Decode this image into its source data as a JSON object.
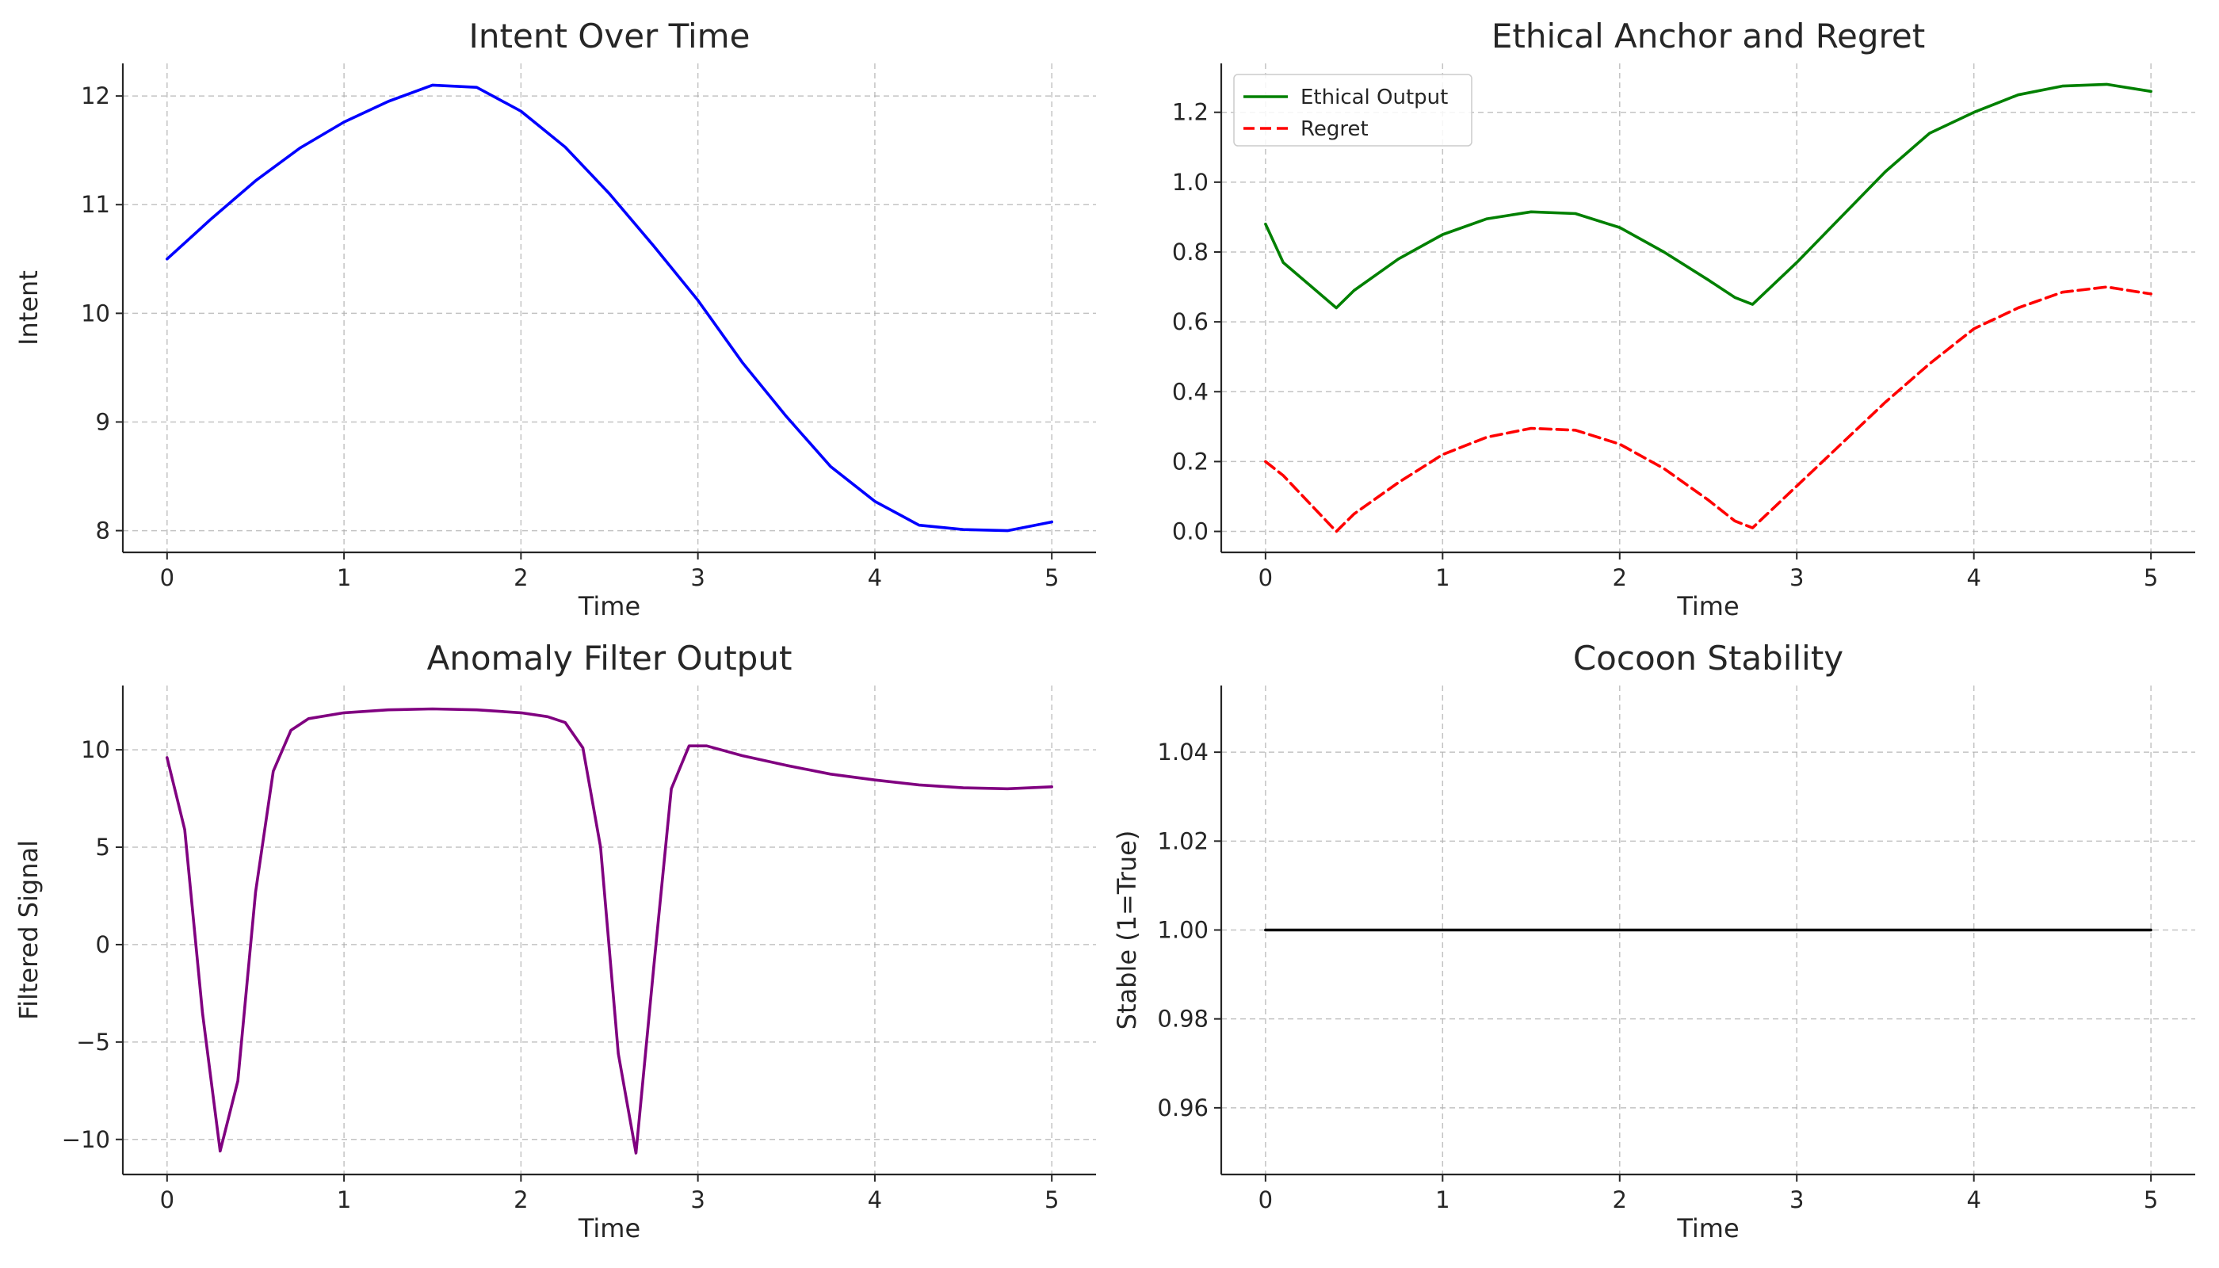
{
  "chart_data": [
    {
      "type": "line",
      "title": "Intent Over Time",
      "xlabel": "Time",
      "ylabel": "Intent",
      "xlim": [
        -0.25,
        5.25
      ],
      "ylim": [
        7.8,
        12.3
      ],
      "xticks": [
        0,
        1,
        2,
        3,
        4,
        5
      ],
      "yticks": [
        8,
        9,
        10,
        11,
        12
      ],
      "ytick_labels": [
        "8",
        "9",
        "10",
        "11",
        "12"
      ],
      "grid": true,
      "legend": null,
      "x": [
        0,
        0.25,
        0.5,
        0.75,
        1,
        1.25,
        1.5,
        1.75,
        2,
        2.25,
        2.5,
        2.75,
        3,
        3.25,
        3.5,
        3.75,
        4,
        4.25,
        4.5,
        4.75,
        5
      ],
      "series": [
        {
          "color": "#0000ff",
          "style": "solid",
          "values": [
            10.5,
            10.87,
            11.22,
            11.52,
            11.76,
            11.95,
            12.1,
            12.08,
            11.86,
            11.53,
            11.1,
            10.62,
            10.12,
            9.55,
            9.05,
            8.59,
            8.27,
            8.05,
            8.01,
            8.0,
            8.08
          ]
        }
      ]
    },
    {
      "type": "line",
      "title": "Ethical Anchor and Regret",
      "xlabel": "Time",
      "ylabel": "",
      "xlim": [
        -0.25,
        5.25
      ],
      "ylim": [
        -0.06,
        1.34
      ],
      "xticks": [
        0,
        1,
        2,
        3,
        4,
        5
      ],
      "yticks": [
        0.0,
        0.2,
        0.4,
        0.6,
        0.8,
        1.0,
        1.2
      ],
      "ytick_labels": [
        "0.0",
        "0.2",
        "0.4",
        "0.6",
        "0.8",
        "1.0",
        "1.2"
      ],
      "grid": true,
      "legend": "top-left",
      "x": [
        0,
        0.1,
        0.4,
        0.5,
        0.75,
        1,
        1.25,
        1.5,
        1.75,
        2,
        2.25,
        2.5,
        2.65,
        2.75,
        3,
        3.25,
        3.5,
        3.75,
        4,
        4.25,
        4.5,
        4.75,
        5
      ],
      "series": [
        {
          "name": "Ethical Output",
          "color": "#008000",
          "style": "solid",
          "values": [
            0.88,
            0.77,
            0.64,
            0.69,
            0.78,
            0.85,
            0.895,
            0.915,
            0.91,
            0.87,
            0.8,
            0.72,
            0.67,
            0.65,
            0.77,
            0.9,
            1.03,
            1.14,
            1.2,
            1.25,
            1.275,
            1.28,
            1.26
          ]
        },
        {
          "name": "Regret",
          "color": "#ff0000",
          "style": "dashed",
          "values": [
            0.2,
            0.16,
            0.0,
            0.05,
            0.14,
            0.22,
            0.27,
            0.295,
            0.29,
            0.25,
            0.18,
            0.09,
            0.03,
            0.01,
            0.13,
            0.25,
            0.37,
            0.48,
            0.58,
            0.64,
            0.685,
            0.7,
            0.68
          ]
        }
      ]
    },
    {
      "type": "line",
      "title": "Anomaly Filter Output",
      "xlabel": "Time",
      "ylabel": "Filtered Signal",
      "xlim": [
        -0.25,
        5.25
      ],
      "ylim": [
        -11.8,
        13.3
      ],
      "xticks": [
        0,
        1,
        2,
        3,
        4,
        5
      ],
      "yticks": [
        -10,
        -5,
        0,
        5,
        10
      ],
      "ytick_labels": [
        "−10",
        "−5",
        "0",
        "5",
        "10"
      ],
      "grid": true,
      "legend": null,
      "x": [
        0,
        0.1,
        0.2,
        0.3,
        0.4,
        0.5,
        0.6,
        0.7,
        0.8,
        1,
        1.25,
        1.5,
        1.75,
        2,
        2.15,
        2.25,
        2.35,
        2.45,
        2.55,
        2.65,
        2.75,
        2.85,
        2.95,
        3.05,
        3.25,
        3.5,
        3.75,
        4,
        4.25,
        4.5,
        4.75,
        5
      ],
      "series": [
        {
          "color": "#800080",
          "style": "solid",
          "values": [
            9.6,
            5.9,
            -3.5,
            -10.6,
            -7.0,
            2.7,
            8.9,
            11.0,
            11.6,
            11.9,
            12.05,
            12.1,
            12.05,
            11.9,
            11.7,
            11.4,
            10.1,
            5.0,
            -5.6,
            -10.7,
            -1.2,
            8.0,
            10.2,
            10.2,
            9.7,
            9.2,
            8.75,
            8.45,
            8.2,
            8.05,
            8.0,
            8.1
          ]
        }
      ]
    },
    {
      "type": "line",
      "title": "Cocoon Stability",
      "xlabel": "Time",
      "ylabel": "Stable (1=True)",
      "xlim": [
        -0.25,
        5.25
      ],
      "ylim": [
        0.945,
        1.055
      ],
      "xticks": [
        0,
        1,
        2,
        3,
        4,
        5
      ],
      "yticks": [
        0.96,
        0.98,
        1.0,
        1.02,
        1.04
      ],
      "ytick_labels": [
        "0.96",
        "0.98",
        "1.00",
        "1.02",
        "1.04"
      ],
      "grid": true,
      "legend": null,
      "x": [
        0,
        5
      ],
      "series": [
        {
          "color": "#000000",
          "style": "solid",
          "values": [
            1,
            1
          ]
        }
      ]
    }
  ]
}
